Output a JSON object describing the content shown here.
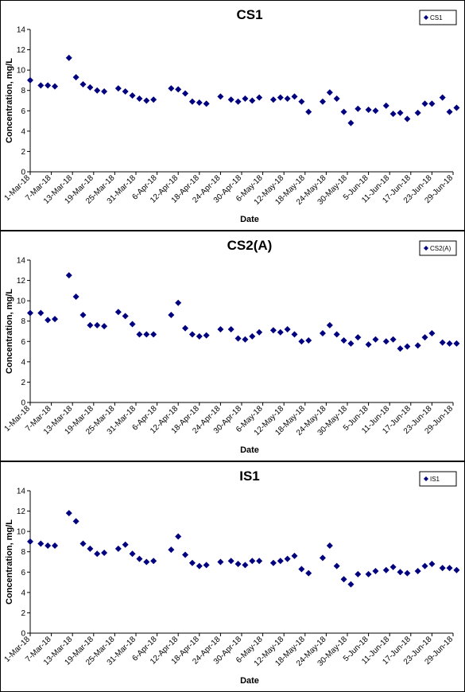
{
  "chart_data": [
    {
      "type": "scatter",
      "title": "CS1",
      "xlabel": "Date",
      "ylabel": "Concentration, mg/L",
      "ylim": [
        0,
        14
      ],
      "yticks": [
        0,
        2,
        4,
        6,
        8,
        10,
        12,
        14
      ],
      "xlim": [
        "1-Mar-18",
        "29-Jun-18"
      ],
      "xticks": [
        "1-Mar-18",
        "7-Mar-18",
        "13-Mar-18",
        "19-Mar-18",
        "25-Mar-18",
        "31-Mar-18",
        "6-Apr-18",
        "12-Apr-18",
        "18-Apr-18",
        "24-Apr-18",
        "30-Apr-18",
        "6-May-18",
        "12-May-18",
        "18-May-18",
        "24-May-18",
        "30-May-18",
        "5-Jun-18",
        "11-Jun-18",
        "17-Jun-18",
        "23-Jun-18",
        "29-Jun-18"
      ],
      "grid": false,
      "legend": "top-right",
      "color": "#00007f",
      "series": [
        {
          "name": "CS1",
          "points": [
            [
              "1-Mar-18",
              9.0
            ],
            [
              "4-Mar-18",
              8.5
            ],
            [
              "6-Mar-18",
              8.5
            ],
            [
              "8-Mar-18",
              8.4
            ],
            [
              "12-Mar-18",
              11.2
            ],
            [
              "14-Mar-18",
              9.3
            ],
            [
              "16-Mar-18",
              8.6
            ],
            [
              "18-Mar-18",
              8.3
            ],
            [
              "20-Mar-18",
              8.0
            ],
            [
              "22-Mar-18",
              7.9
            ],
            [
              "26-Mar-18",
              8.2
            ],
            [
              "28-Mar-18",
              7.9
            ],
            [
              "30-Mar-18",
              7.5
            ],
            [
              "1-Apr-18",
              7.2
            ],
            [
              "3-Apr-18",
              7.0
            ],
            [
              "5-Apr-18",
              7.1
            ],
            [
              "10-Apr-18",
              8.2
            ],
            [
              "12-Apr-18",
              8.1
            ],
            [
              "14-Apr-18",
              7.7
            ],
            [
              "16-Apr-18",
              6.9
            ],
            [
              "18-Apr-18",
              6.8
            ],
            [
              "20-Apr-18",
              6.7
            ],
            [
              "24-Apr-18",
              7.4
            ],
            [
              "27-Apr-18",
              7.1
            ],
            [
              "29-Apr-18",
              6.9
            ],
            [
              "1-May-18",
              7.2
            ],
            [
              "3-May-18",
              7.0
            ],
            [
              "5-May-18",
              7.3
            ],
            [
              "9-May-18",
              7.1
            ],
            [
              "11-May-18",
              7.3
            ],
            [
              "13-May-18",
              7.2
            ],
            [
              "15-May-18",
              7.4
            ],
            [
              "17-May-18",
              6.9
            ],
            [
              "19-May-18",
              5.9
            ],
            [
              "23-May-18",
              6.9
            ],
            [
              "25-May-18",
              7.8
            ],
            [
              "27-May-18",
              7.2
            ],
            [
              "29-May-18",
              5.9
            ],
            [
              "31-May-18",
              4.8
            ],
            [
              "2-Jun-18",
              6.2
            ],
            [
              "5-Jun-18",
              6.1
            ],
            [
              "7-Jun-18",
              6.0
            ],
            [
              "10-Jun-18",
              6.5
            ],
            [
              "12-Jun-18",
              5.7
            ],
            [
              "14-Jun-18",
              5.8
            ],
            [
              "16-Jun-18",
              5.2
            ],
            [
              "19-Jun-18",
              5.8
            ],
            [
              "21-Jun-18",
              6.7
            ],
            [
              "23-Jun-18",
              6.7
            ],
            [
              "26-Jun-18",
              7.3
            ],
            [
              "28-Jun-18",
              5.9
            ],
            [
              "30-Jun-18",
              6.3
            ]
          ]
        }
      ]
    },
    {
      "type": "scatter",
      "title": "CS2(A)",
      "xlabel": "Date",
      "ylabel": "Concentration, mg/L",
      "ylim": [
        0,
        14
      ],
      "yticks": [
        0,
        2,
        4,
        6,
        8,
        10,
        12,
        14
      ],
      "xlim": [
        "1-Mar-18",
        "29-Jun-18"
      ],
      "xticks": [
        "1-Mar-18",
        "7-Mar-18",
        "13-Mar-18",
        "19-Mar-18",
        "25-Mar-18",
        "31-Mar-18",
        "6-Apr-18",
        "12-Apr-18",
        "18-Apr-18",
        "24-Apr-18",
        "30-Apr-18",
        "6-May-18",
        "12-May-18",
        "18-May-18",
        "24-May-18",
        "30-May-18",
        "5-Jun-18",
        "11-Jun-18",
        "17-Jun-18",
        "23-Jun-18",
        "29-Jun-18"
      ],
      "grid": false,
      "legend": "top-right",
      "color": "#00007f",
      "series": [
        {
          "name": "CS2(A)",
          "points": [
            [
              "1-Mar-18",
              8.8
            ],
            [
              "4-Mar-18",
              8.8
            ],
            [
              "6-Mar-18",
              8.1
            ],
            [
              "8-Mar-18",
              8.2
            ],
            [
              "12-Mar-18",
              12.5
            ],
            [
              "14-Mar-18",
              10.4
            ],
            [
              "16-Mar-18",
              8.6
            ],
            [
              "18-Mar-18",
              7.6
            ],
            [
              "20-Mar-18",
              7.6
            ],
            [
              "22-Mar-18",
              7.5
            ],
            [
              "26-Mar-18",
              8.9
            ],
            [
              "28-Mar-18",
              8.5
            ],
            [
              "30-Mar-18",
              7.7
            ],
            [
              "1-Apr-18",
              6.7
            ],
            [
              "3-Apr-18",
              6.7
            ],
            [
              "5-Apr-18",
              6.7
            ],
            [
              "10-Apr-18",
              8.6
            ],
            [
              "12-Apr-18",
              9.8
            ],
            [
              "14-Apr-18",
              7.3
            ],
            [
              "16-Apr-18",
              6.7
            ],
            [
              "18-Apr-18",
              6.5
            ],
            [
              "20-Apr-18",
              6.6
            ],
            [
              "24-Apr-18",
              7.2
            ],
            [
              "27-Apr-18",
              7.2
            ],
            [
              "29-Apr-18",
              6.3
            ],
            [
              "1-May-18",
              6.2
            ],
            [
              "3-May-18",
              6.5
            ],
            [
              "5-May-18",
              6.9
            ],
            [
              "9-May-18",
              7.1
            ],
            [
              "11-May-18",
              6.9
            ],
            [
              "13-May-18",
              7.2
            ],
            [
              "15-May-18",
              6.7
            ],
            [
              "17-May-18",
              6.0
            ],
            [
              "19-May-18",
              6.1
            ],
            [
              "23-May-18",
              6.8
            ],
            [
              "25-May-18",
              7.6
            ],
            [
              "27-May-18",
              6.7
            ],
            [
              "29-May-18",
              6.1
            ],
            [
              "31-May-18",
              5.8
            ],
            [
              "2-Jun-18",
              6.4
            ],
            [
              "5-Jun-18",
              5.7
            ],
            [
              "7-Jun-18",
              6.2
            ],
            [
              "10-Jun-18",
              6.0
            ],
            [
              "12-Jun-18",
              6.2
            ],
            [
              "14-Jun-18",
              5.3
            ],
            [
              "16-Jun-18",
              5.5
            ],
            [
              "19-Jun-18",
              5.6
            ],
            [
              "21-Jun-18",
              6.4
            ],
            [
              "23-Jun-18",
              6.8
            ],
            [
              "26-Jun-18",
              5.9
            ],
            [
              "28-Jun-18",
              5.8
            ],
            [
              "30-Jun-18",
              5.8
            ]
          ]
        }
      ]
    },
    {
      "type": "scatter",
      "title": "IS1",
      "xlabel": "Date",
      "ylabel": "Concentration, mg/L",
      "ylim": [
        0,
        14
      ],
      "yticks": [
        0,
        2,
        4,
        6,
        8,
        10,
        12,
        14
      ],
      "xlim": [
        "1-Mar-18",
        "29-Jun-18"
      ],
      "xticks": [
        "1-Mar-18",
        "7-Mar-18",
        "13-Mar-18",
        "19-Mar-18",
        "25-Mar-18",
        "31-Mar-18",
        "6-Apr-18",
        "12-Apr-18",
        "18-Apr-18",
        "24-Apr-18",
        "30-Apr-18",
        "6-May-18",
        "12-May-18",
        "18-May-18",
        "24-May-18",
        "30-May-18",
        "5-Jun-18",
        "11-Jun-18",
        "17-Jun-18",
        "23-Jun-18",
        "29-Jun-18"
      ],
      "grid": false,
      "legend": "top-right",
      "color": "#00007f",
      "series": [
        {
          "name": "IS1",
          "points": [
            [
              "1-Mar-18",
              9.0
            ],
            [
              "4-Mar-18",
              8.8
            ],
            [
              "6-Mar-18",
              8.6
            ],
            [
              "8-Mar-18",
              8.6
            ],
            [
              "12-Mar-18",
              11.8
            ],
            [
              "14-Mar-18",
              11.0
            ],
            [
              "16-Mar-18",
              8.8
            ],
            [
              "18-Mar-18",
              8.3
            ],
            [
              "20-Mar-18",
              7.8
            ],
            [
              "22-Mar-18",
              7.9
            ],
            [
              "26-Mar-18",
              8.3
            ],
            [
              "28-Mar-18",
              8.7
            ],
            [
              "30-Mar-18",
              7.8
            ],
            [
              "1-Apr-18",
              7.3
            ],
            [
              "3-Apr-18",
              7.0
            ],
            [
              "5-Apr-18",
              7.1
            ],
            [
              "10-Apr-18",
              8.2
            ],
            [
              "12-Apr-18",
              9.5
            ],
            [
              "14-Apr-18",
              7.7
            ],
            [
              "16-Apr-18",
              6.9
            ],
            [
              "18-Apr-18",
              6.6
            ],
            [
              "20-Apr-18",
              6.7
            ],
            [
              "24-Apr-18",
              7.0
            ],
            [
              "27-Apr-18",
              7.1
            ],
            [
              "29-Apr-18",
              6.8
            ],
            [
              "1-May-18",
              6.7
            ],
            [
              "3-May-18",
              7.1
            ],
            [
              "5-May-18",
              7.1
            ],
            [
              "9-May-18",
              6.9
            ],
            [
              "11-May-18",
              7.1
            ],
            [
              "13-May-18",
              7.3
            ],
            [
              "15-May-18",
              7.6
            ],
            [
              "17-May-18",
              6.3
            ],
            [
              "19-May-18",
              5.9
            ],
            [
              "23-May-18",
              7.4
            ],
            [
              "25-May-18",
              8.6
            ],
            [
              "27-May-18",
              6.6
            ],
            [
              "29-May-18",
              5.3
            ],
            [
              "31-May-18",
              4.8
            ],
            [
              "2-Jun-18",
              5.8
            ],
            [
              "5-Jun-18",
              5.8
            ],
            [
              "7-Jun-18",
              6.1
            ],
            [
              "10-Jun-18",
              6.2
            ],
            [
              "12-Jun-18",
              6.5
            ],
            [
              "14-Jun-18",
              6.0
            ],
            [
              "16-Jun-18",
              5.9
            ],
            [
              "19-Jun-18",
              6.1
            ],
            [
              "21-Jun-18",
              6.6
            ],
            [
              "23-Jun-18",
              6.8
            ],
            [
              "26-Jun-18",
              6.4
            ],
            [
              "28-Jun-18",
              6.4
            ],
            [
              "30-Jun-18",
              6.2
            ]
          ]
        }
      ]
    }
  ]
}
